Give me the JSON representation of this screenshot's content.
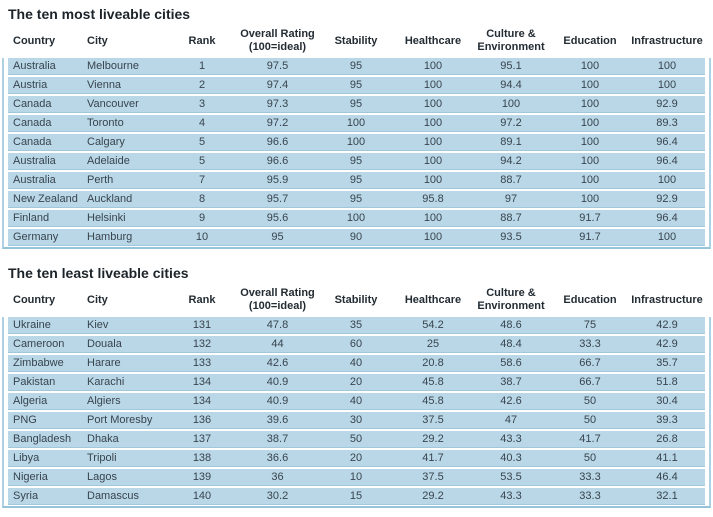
{
  "colors": {
    "row_background": "#b9d7e7",
    "row_rule": "#a0c7da",
    "table_edge_line": "#aed0e2",
    "table_bottom_line": "#95c3da",
    "title_text": "#1c2329",
    "header_text": "#232c33",
    "cell_text": "#38444e",
    "page_background": "#ffffff"
  },
  "chart_data": [
    {
      "type": "table",
      "title": "The ten most liveable cities",
      "columns": [
        "Country",
        "City",
        "Rank",
        "Overall Rating\n(100=ideal)",
        "Stability",
        "Healthcare",
        "Culture &\nEnvironment",
        "Education",
        "Infrastructure"
      ],
      "rows": [
        [
          "Australia",
          "Melbourne",
          "1",
          "97.5",
          "95",
          "100",
          "95.1",
          "100",
          "100"
        ],
        [
          "Austria",
          "Vienna",
          "2",
          "97.4",
          "95",
          "100",
          "94.4",
          "100",
          "100"
        ],
        [
          "Canada",
          "Vancouver",
          "3",
          "97.3",
          "95",
          "100",
          "100",
          "100",
          "92.9"
        ],
        [
          "Canada",
          "Toronto",
          "4",
          "97.2",
          "100",
          "100",
          "97.2",
          "100",
          "89.3"
        ],
        [
          "Canada",
          "Calgary",
          "5",
          "96.6",
          "100",
          "100",
          "89.1",
          "100",
          "96.4"
        ],
        [
          "Australia",
          "Adelaide",
          "5",
          "96.6",
          "95",
          "100",
          "94.2",
          "100",
          "96.4"
        ],
        [
          "Australia",
          "Perth",
          "7",
          "95.9",
          "95",
          "100",
          "88.7",
          "100",
          "100"
        ],
        [
          "New Zealand",
          "Auckland",
          "8",
          "95.7",
          "95",
          "95.8",
          "97",
          "100",
          "92.9"
        ],
        [
          "Finland",
          "Helsinki",
          "9",
          "95.6",
          "100",
          "100",
          "88.7",
          "91.7",
          "96.4"
        ],
        [
          "Germany",
          "Hamburg",
          "10",
          "95",
          "90",
          "100",
          "93.5",
          "91.7",
          "100"
        ]
      ]
    },
    {
      "type": "table",
      "title": "The ten least liveable cities",
      "columns": [
        "Country",
        "City",
        "Rank",
        "Overall Rating\n(100=ideal)",
        "Stability",
        "Healthcare",
        "Culture &\nEnvironment",
        "Education",
        "Infrastructure"
      ],
      "rows": [
        [
          "Ukraine",
          "Kiev",
          "131",
          "47.8",
          "35",
          "54.2",
          "48.6",
          "75",
          "42.9"
        ],
        [
          "Cameroon",
          "Douala",
          "132",
          "44",
          "60",
          "25",
          "48.4",
          "33.3",
          "42.9"
        ],
        [
          "Zimbabwe",
          "Harare",
          "133",
          "42.6",
          "40",
          "20.8",
          "58.6",
          "66.7",
          "35.7"
        ],
        [
          "Pakistan",
          "Karachi",
          "134",
          "40.9",
          "20",
          "45.8",
          "38.7",
          "66.7",
          "51.8"
        ],
        [
          "Algeria",
          "Algiers",
          "134",
          "40.9",
          "40",
          "45.8",
          "42.6",
          "50",
          "30.4"
        ],
        [
          "PNG",
          "Port Moresby",
          "136",
          "39.6",
          "30",
          "37.5",
          "47",
          "50",
          "39.3"
        ],
        [
          "Bangladesh",
          "Dhaka",
          "137",
          "38.7",
          "50",
          "29.2",
          "43.3",
          "41.7",
          "26.8"
        ],
        [
          "Libya",
          "Tripoli",
          "138",
          "36.6",
          "20",
          "41.7",
          "40.3",
          "50",
          "41.1"
        ],
        [
          "Nigeria",
          "Lagos",
          "139",
          "36",
          "10",
          "37.5",
          "53.5",
          "33.3",
          "46.4"
        ],
        [
          "Syria",
          "Damascus",
          "140",
          "30.2",
          "15",
          "29.2",
          "43.3",
          "33.3",
          "32.1"
        ]
      ]
    }
  ]
}
